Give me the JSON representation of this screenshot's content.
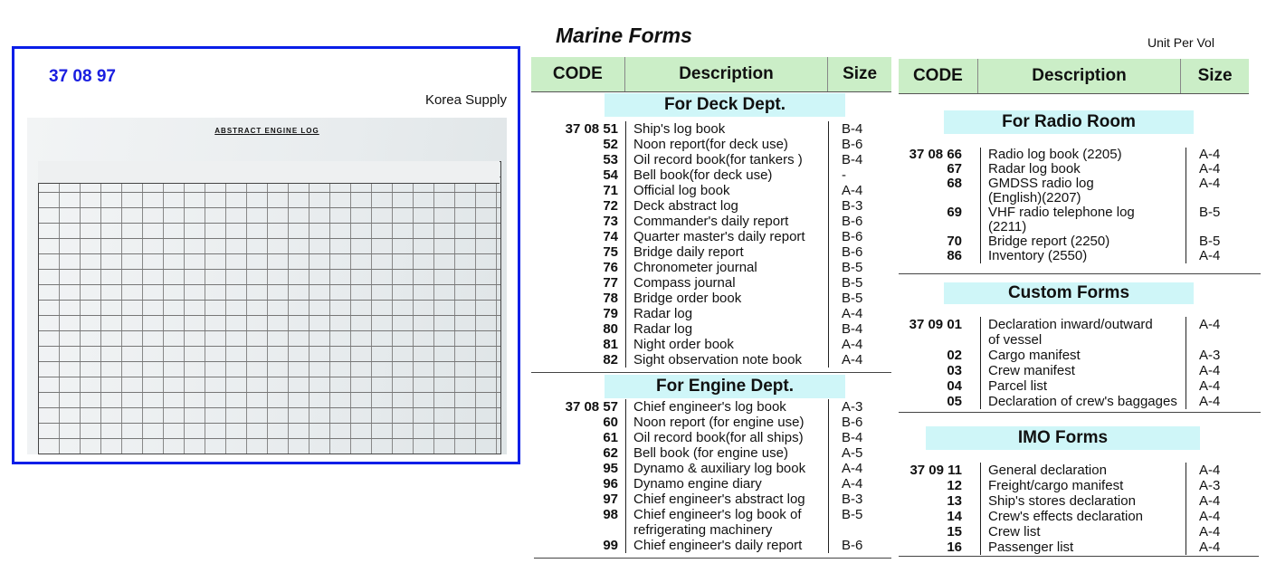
{
  "product": {
    "code": "37 08 97",
    "supplier": "Korea Supply",
    "form_title": "ABSTRACT ENGINE LOG"
  },
  "title": "Marine Forms",
  "unit_label": "Unit Per Vol",
  "headers": {
    "code": "CODE",
    "description": "Description",
    "size": "Size"
  },
  "deck": {
    "label": "For Deck Dept.",
    "rows": [
      {
        "code": "37 08 51",
        "desc": "Ship's log book",
        "size": "B-4"
      },
      {
        "code": "52",
        "desc": "Noon report(for deck use)",
        "size": "B-6"
      },
      {
        "code": "53",
        "desc": "Oil record book(for tankers )",
        "size": "B-4"
      },
      {
        "code": "54",
        "desc": "Bell book(for deck use)",
        "size": "-"
      },
      {
        "code": "71",
        "desc": "Official log book",
        "size": "A-4"
      },
      {
        "code": "72",
        "desc": "Deck abstract log",
        "size": "B-3"
      },
      {
        "code": "73",
        "desc": "Commander's daily report",
        "size": "B-6"
      },
      {
        "code": "74",
        "desc": "Quarter master's daily report",
        "size": "B-6"
      },
      {
        "code": "75",
        "desc": "Bridge daily report",
        "size": "B-6"
      },
      {
        "code": "76",
        "desc": "Chronometer journal",
        "size": "B-5"
      },
      {
        "code": "77",
        "desc": "Compass journal",
        "size": "B-5"
      },
      {
        "code": "78",
        "desc": "Bridge  order book",
        "size": "B-5"
      },
      {
        "code": "79",
        "desc": "Radar log",
        "size": "A-4"
      },
      {
        "code": "80",
        "desc": "Radar log",
        "size": "B-4"
      },
      {
        "code": "81",
        "desc": "Night order book",
        "size": "A-4"
      },
      {
        "code": "82",
        "desc": "Sight observation note book",
        "size": "A-4"
      }
    ]
  },
  "engine": {
    "label": "For Engine Dept.",
    "rows": [
      {
        "code": "37 08 57",
        "desc": "Chief engineer's log book",
        "size": "A-3"
      },
      {
        "code": "60",
        "desc": "Noon report (for engine use)",
        "size": "B-6"
      },
      {
        "code": "61",
        "desc": "Oil record book(for all ships)",
        "size": "B-4"
      },
      {
        "code": "62",
        "desc": "Bell book (for engine use)",
        "size": "A-5"
      },
      {
        "code": "95",
        "desc": "Dynamo & auxiliary log book",
        "size": "A-4"
      },
      {
        "code": "96",
        "desc": "Dynamo engine diary",
        "size": "A-4"
      },
      {
        "code": "97",
        "desc": "Chief engineer's abstract log",
        "size": "B-3"
      },
      {
        "code": "98",
        "desc": "Chief engineer's log book of\n  refrigerating machinery",
        "size": "B-5"
      },
      {
        "code": "99",
        "desc": "Chief engineer's daily report",
        "size": "B-6"
      }
    ]
  },
  "radio": {
    "label": "For Radio Room",
    "rows": [
      {
        "code": "37 08 66",
        "desc": "Radio log book (2205)",
        "size": "A-4"
      },
      {
        "code": "67",
        "desc": "Radar log book",
        "size": "A-4"
      },
      {
        "code": "68",
        "desc": "GMDSS radio log\n   (English)(2207)",
        "size": "A-4"
      },
      {
        "code": "69",
        "desc": "VHF radio telephone log\n   (2211)",
        "size": "B-5"
      },
      {
        "code": "70",
        "desc": "Bridge report (2250)",
        "size": "B-5"
      },
      {
        "code": "86",
        "desc": "Inventory (2550)",
        "size": "A-4"
      }
    ]
  },
  "custom": {
    "label": "Custom Forms",
    "rows": [
      {
        "code": "37 09 01",
        "desc": "Declaration inward/outward\n  of vessel",
        "size": "A-4"
      },
      {
        "code": "02",
        "desc": "Cargo manifest",
        "size": "A-3"
      },
      {
        "code": "03",
        "desc": "Crew manifest",
        "size": "A-4"
      },
      {
        "code": "04",
        "desc": "Parcel list",
        "size": "A-4"
      },
      {
        "code": "05",
        "desc": "Declaration of crew's baggages",
        "size": "A-4"
      }
    ]
  },
  "imo": {
    "label": "IMO Forms",
    "rows": [
      {
        "code": "37 09 11",
        "desc": "General declaration",
        "size": "A-4"
      },
      {
        "code": "12",
        "desc": "Freight/cargo manifest",
        "size": "A-3"
      },
      {
        "code": "13",
        "desc": "Ship's stores declaration",
        "size": "A-4"
      },
      {
        "code": "14",
        "desc": "Crew's effects declaration",
        "size": "A-4"
      },
      {
        "code": "15",
        "desc": "Crew list",
        "size": "A-4"
      },
      {
        "code": "16",
        "desc": "Passenger list",
        "size": "A-4"
      }
    ]
  }
}
